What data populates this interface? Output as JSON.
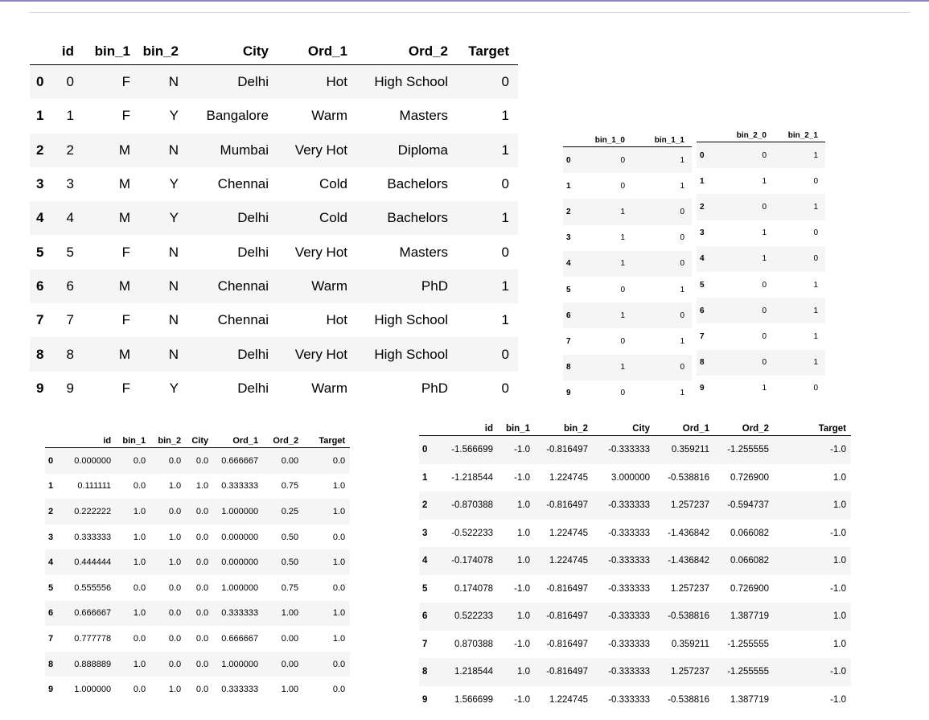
{
  "table_original": {
    "columns": [
      "",
      "id",
      "bin_1",
      "bin_2",
      "City",
      "Ord_1",
      "Ord_2",
      "Target"
    ],
    "rows": [
      [
        "0",
        "0",
        "F",
        "N",
        "Delhi",
        "Hot",
        "High School",
        "0"
      ],
      [
        "1",
        "1",
        "F",
        "Y",
        "Bangalore",
        "Warm",
        "Masters",
        "1"
      ],
      [
        "2",
        "2",
        "M",
        "N",
        "Mumbai",
        "Very Hot",
        "Diploma",
        "1"
      ],
      [
        "3",
        "3",
        "M",
        "Y",
        "Chennai",
        "Cold",
        "Bachelors",
        "0"
      ],
      [
        "4",
        "4",
        "M",
        "Y",
        "Delhi",
        "Cold",
        "Bachelors",
        "1"
      ],
      [
        "5",
        "5",
        "F",
        "N",
        "Delhi",
        "Very Hot",
        "Masters",
        "0"
      ],
      [
        "6",
        "6",
        "M",
        "N",
        "Chennai",
        "Warm",
        "PhD",
        "1"
      ],
      [
        "7",
        "7",
        "F",
        "N",
        "Chennai",
        "Hot",
        "High School",
        "1"
      ],
      [
        "8",
        "8",
        "M",
        "N",
        "Delhi",
        "Very Hot",
        "High School",
        "0"
      ],
      [
        "9",
        "9",
        "F",
        "Y",
        "Delhi",
        "Warm",
        "PhD",
        "0"
      ]
    ]
  },
  "table_bin1_dummies": {
    "columns": [
      "",
      "bin_1_0",
      "bin_1_1"
    ],
    "rows": [
      [
        "0",
        "0",
        "1"
      ],
      [
        "1",
        "0",
        "1"
      ],
      [
        "2",
        "1",
        "0"
      ],
      [
        "3",
        "1",
        "0"
      ],
      [
        "4",
        "1",
        "0"
      ],
      [
        "5",
        "0",
        "1"
      ],
      [
        "6",
        "1",
        "0"
      ],
      [
        "7",
        "0",
        "1"
      ],
      [
        "8",
        "1",
        "0"
      ],
      [
        "9",
        "0",
        "1"
      ]
    ]
  },
  "table_bin2_dummies": {
    "columns": [
      "",
      "bin_2_0",
      "bin_2_1"
    ],
    "rows": [
      [
        "0",
        "0",
        "1"
      ],
      [
        "1",
        "1",
        "0"
      ],
      [
        "2",
        "0",
        "1"
      ],
      [
        "3",
        "1",
        "0"
      ],
      [
        "4",
        "1",
        "0"
      ],
      [
        "5",
        "0",
        "1"
      ],
      [
        "6",
        "0",
        "1"
      ],
      [
        "7",
        "0",
        "1"
      ],
      [
        "8",
        "0",
        "1"
      ],
      [
        "9",
        "1",
        "0"
      ]
    ]
  },
  "table_minmax": {
    "columns": [
      "",
      "id",
      "bin_1",
      "bin_2",
      "City",
      "Ord_1",
      "Ord_2",
      "Target"
    ],
    "rows": [
      [
        "0",
        "0.000000",
        "0.0",
        "0.0",
        "0.0",
        "0.666667",
        "0.00",
        "0.0"
      ],
      [
        "1",
        "0.111111",
        "0.0",
        "1.0",
        "1.0",
        "0.333333",
        "0.75",
        "1.0"
      ],
      [
        "2",
        "0.222222",
        "1.0",
        "0.0",
        "0.0",
        "1.000000",
        "0.25",
        "1.0"
      ],
      [
        "3",
        "0.333333",
        "1.0",
        "1.0",
        "0.0",
        "0.000000",
        "0.50",
        "0.0"
      ],
      [
        "4",
        "0.444444",
        "1.0",
        "1.0",
        "0.0",
        "0.000000",
        "0.50",
        "1.0"
      ],
      [
        "5",
        "0.555556",
        "0.0",
        "0.0",
        "0.0",
        "1.000000",
        "0.75",
        "0.0"
      ],
      [
        "6",
        "0.666667",
        "1.0",
        "0.0",
        "0.0",
        "0.333333",
        "1.00",
        "1.0"
      ],
      [
        "7",
        "0.777778",
        "0.0",
        "0.0",
        "0.0",
        "0.666667",
        "0.00",
        "1.0"
      ],
      [
        "8",
        "0.888889",
        "1.0",
        "0.0",
        "0.0",
        "1.000000",
        "0.00",
        "0.0"
      ],
      [
        "9",
        "1.000000",
        "0.0",
        "1.0",
        "0.0",
        "0.333333",
        "1.00",
        "0.0"
      ]
    ]
  },
  "table_standard": {
    "columns": [
      "",
      "id",
      "bin_1",
      "bin_2",
      "City",
      "Ord_1",
      "Ord_2",
      "Target"
    ],
    "rows": [
      [
        "0",
        "-1.566699",
        "-1.0",
        "-0.816497",
        "-0.333333",
        "0.359211",
        "-1.255555",
        "-1.0"
      ],
      [
        "1",
        "-1.218544",
        "-1.0",
        "1.224745",
        "3.000000",
        "-0.538816",
        "0.726900",
        "1.0"
      ],
      [
        "2",
        "-0.870388",
        "1.0",
        "-0.816497",
        "-0.333333",
        "1.257237",
        "-0.594737",
        "1.0"
      ],
      [
        "3",
        "-0.522233",
        "1.0",
        "1.224745",
        "-0.333333",
        "-1.436842",
        "0.066082",
        "-1.0"
      ],
      [
        "4",
        "-0.174078",
        "1.0",
        "1.224745",
        "-0.333333",
        "-1.436842",
        "0.066082",
        "1.0"
      ],
      [
        "5",
        "0.174078",
        "-1.0",
        "-0.816497",
        "-0.333333",
        "1.257237",
        "0.726900",
        "-1.0"
      ],
      [
        "6",
        "0.522233",
        "1.0",
        "-0.816497",
        "-0.333333",
        "-0.538816",
        "1.387719",
        "1.0"
      ],
      [
        "7",
        "0.870388",
        "-1.0",
        "-0.816497",
        "-0.333333",
        "0.359211",
        "-1.255555",
        "1.0"
      ],
      [
        "8",
        "1.218544",
        "1.0",
        "-0.816497",
        "-0.333333",
        "1.257237",
        "-1.255555",
        "-1.0"
      ],
      [
        "9",
        "1.566699",
        "-1.0",
        "1.224745",
        "-0.333333",
        "-0.538816",
        "1.387719",
        "-1.0"
      ]
    ]
  }
}
